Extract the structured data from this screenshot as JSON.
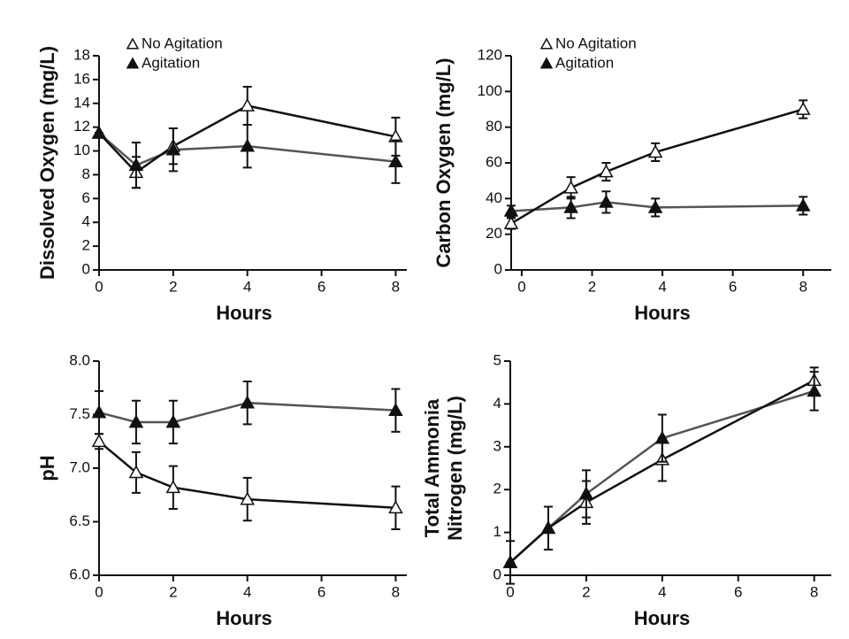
{
  "chart_data": [
    {
      "type": "line",
      "y_label": [
        "Dissolved Oxygen (mg/L)"
      ],
      "x_label": "Hours",
      "x": [
        0,
        1,
        2,
        4,
        8
      ],
      "xlim": [
        0,
        8.3
      ],
      "xticks": [
        0,
        2,
        4,
        6,
        8
      ],
      "ylim": [
        0,
        18
      ],
      "yticks": [
        0,
        2,
        4,
        6,
        8,
        10,
        12,
        14,
        16,
        18
      ],
      "legend": true,
      "series": [
        {
          "name": "No Agitation",
          "color": "#111111",
          "marker": "open",
          "values": [
            11.5,
            8.2,
            10.4,
            13.8,
            11.2
          ],
          "errors": [
            0,
            1.3,
            1.5,
            1.6,
            1.6
          ]
        },
        {
          "name": "Agitation",
          "color": "#555555",
          "marker": "filled",
          "values": [
            11.5,
            8.8,
            10.1,
            10.4,
            9.1
          ],
          "errors": [
            0,
            1.9,
            1.8,
            1.8,
            1.8
          ]
        }
      ]
    },
    {
      "type": "line",
      "y_label": [
        "Carbon Oxygen (mg/L)"
      ],
      "x_label": "Hours",
      "x": [
        -0.3,
        1.4,
        2.4,
        3.8,
        8
      ],
      "xlim": [
        -0.3,
        8.8
      ],
      "xticks": [
        0,
        2,
        4,
        6,
        8
      ],
      "ylim": [
        0,
        120
      ],
      "yticks": [
        0,
        20,
        40,
        60,
        80,
        100,
        120
      ],
      "legend": true,
      "series": [
        {
          "name": "No Agitation",
          "color": "#111111",
          "marker": "open",
          "values": [
            26,
            46,
            55,
            66,
            90
          ],
          "errors": [
            3,
            6,
            5,
            5,
            5
          ]
        },
        {
          "name": "Agitation",
          "color": "#555555",
          "marker": "filled",
          "values": [
            33,
            35,
            38,
            35,
            36
          ],
          "errors": [
            3,
            6,
            6,
            5,
            5
          ]
        }
      ]
    },
    {
      "type": "line",
      "y_label": [
        "pH"
      ],
      "x_label": "Hours",
      "x": [
        0,
        1,
        2,
        4,
        8
      ],
      "xlim": [
        0,
        8.3
      ],
      "xticks": [
        0,
        2,
        4,
        6,
        8
      ],
      "ylim": [
        6,
        8
      ],
      "yticks": [
        {
          "value": 6,
          "label": "6.0"
        },
        6.5,
        {
          "value": 7,
          "label": "7.0"
        },
        7.5,
        {
          "value": 8,
          "label": "8.0"
        }
      ],
      "legend": false,
      "series": [
        {
          "name": "No Agitation",
          "color": "#111111",
          "marker": "open",
          "values": [
            7.25,
            6.96,
            6.82,
            6.71,
            6.63
          ],
          "errors": [
            0.07,
            0.19,
            0.2,
            0.2,
            0.2
          ]
        },
        {
          "name": "Agitation",
          "color": "#555555",
          "marker": "filled",
          "values": [
            7.52,
            7.43,
            7.43,
            7.61,
            7.54
          ],
          "errors": [
            0.2,
            0.2,
            0.2,
            0.2,
            0.2
          ]
        }
      ]
    },
    {
      "type": "line",
      "y_label": [
        "Total Ammonia",
        "Nitrogen (mg/L)"
      ],
      "x_label": "Hours",
      "x": [
        0,
        1,
        2,
        4,
        8
      ],
      "xlim": [
        0,
        8.45
      ],
      "xticks": [
        0,
        2,
        4,
        6,
        8
      ],
      "ylim": [
        0,
        5
      ],
      "yticks": [
        0,
        1,
        2,
        3,
        4,
        5
      ],
      "legend": false,
      "series": [
        {
          "name": "No Agitation",
          "color": "#111111",
          "marker": "open",
          "values": [
            0.3,
            1.1,
            1.7,
            2.7,
            4.55
          ],
          "errors": [
            0.5,
            0.5,
            0.5,
            0.5,
            0.3
          ]
        },
        {
          "name": "Agitation",
          "color": "#555555",
          "marker": "filled",
          "values": [
            0.3,
            1.1,
            1.9,
            3.2,
            4.3
          ],
          "errors": [
            0,
            0.5,
            0.55,
            0.55,
            0.45
          ]
        }
      ]
    }
  ]
}
